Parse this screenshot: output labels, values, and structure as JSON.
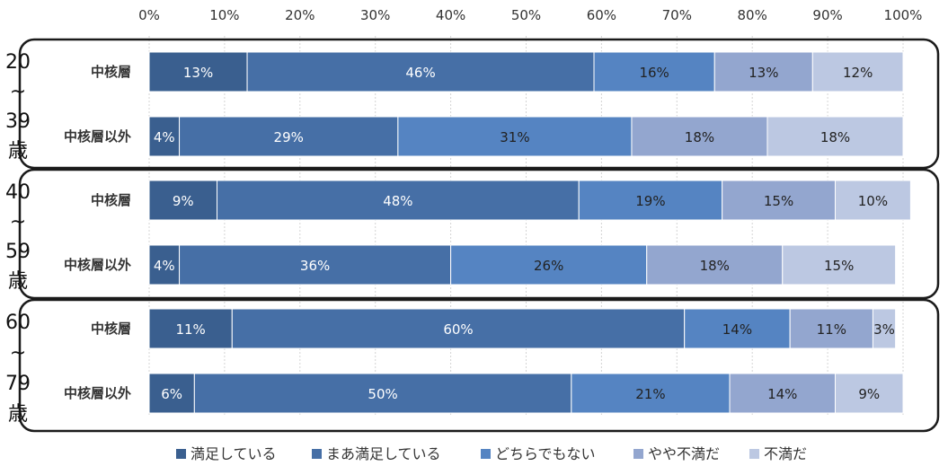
{
  "chart_data": {
    "type": "bar",
    "orientation": "horizontal",
    "stacked": true,
    "normalized": true,
    "xlim": [
      0,
      100
    ],
    "x_ticks": [
      "0%",
      "10%",
      "20%",
      "30%",
      "40%",
      "50%",
      "60%",
      "70%",
      "80%",
      "90%",
      "100%"
    ],
    "grid": true,
    "legend_position": "bottom",
    "series": [
      {
        "name": "満足している",
        "color": "#3a5f8f"
      },
      {
        "name": "まあ満足している",
        "color": "#466fa6"
      },
      {
        "name": "どちらでもない",
        "color": "#5584c2"
      },
      {
        "name": "やや不満だ",
        "color": "#93a6cf"
      },
      {
        "name": "不満だ",
        "color": "#bcc8e2"
      }
    ],
    "groups": [
      {
        "age_label": [
          "20",
          "~",
          "39",
          "歳"
        ],
        "rows": [
          {
            "label": "中核層",
            "values": [
              13,
              46,
              16,
              13,
              12
            ],
            "value_labels": [
              "13%",
              "46%",
              "16%",
              "13%",
              "12%"
            ]
          },
          {
            "label": "中核層以外",
            "values": [
              4,
              29,
              31,
              18,
              18
            ],
            "value_labels": [
              "4%",
              "29%",
              "31%",
              "18%",
              "18%"
            ]
          }
        ]
      },
      {
        "age_label": [
          "40",
          "~",
          "59",
          "歳"
        ],
        "rows": [
          {
            "label": "中核層",
            "values": [
              9,
              48,
              19,
              15,
              10
            ],
            "value_labels": [
              "9%",
              "48%",
              "19%",
              "15%",
              "10%"
            ]
          },
          {
            "label": "中核層以外",
            "values": [
              4,
              36,
              26,
              18,
              15
            ],
            "value_labels": [
              "4%",
              "36%",
              "26%",
              "18%",
              "15%"
            ]
          }
        ]
      },
      {
        "age_label": [
          "60",
          "~",
          "79",
          "歳"
        ],
        "rows": [
          {
            "label": "中核層",
            "values": [
              11,
              60,
              14,
              11,
              3
            ],
            "value_labels": [
              "11%",
              "60%",
              "14%",
              "11%",
              "3%"
            ]
          },
          {
            "label": "中核層以外",
            "values": [
              6,
              50,
              21,
              14,
              9
            ],
            "value_labels": [
              "6%",
              "50%",
              "21%",
              "14%",
              "9%"
            ]
          }
        ]
      }
    ],
    "label_colors": [
      "#ffffff",
      "#ffffff",
      "#222222",
      "#222222",
      "#222222"
    ]
  }
}
